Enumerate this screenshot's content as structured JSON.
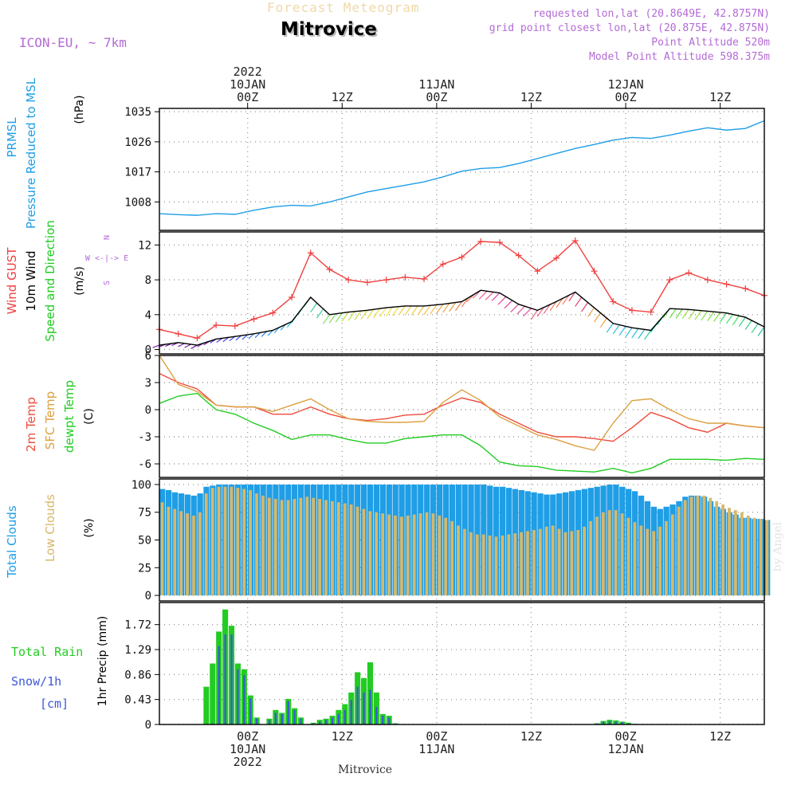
{
  "header": {
    "title": "Forecast Meteogram",
    "location": "Mitrovice",
    "model": "ICON-EU, ~ 7km",
    "info_lines": [
      "requested lon,lat (20.8649E, 42.8757N)",
      "grid point closest lon,lat (20.875E, 42.875N)",
      "Point Altitude 520m",
      "Model Point Altitude 598.375m"
    ],
    "signature": "by Angel",
    "footer": "Mitrovice"
  },
  "colors": {
    "pressure": "#1f9ee6",
    "gust": "#f04040",
    "wind": "#000000",
    "temp2m": "#ee4c3c",
    "sfc_temp": "#dca040",
    "dewpt": "#22cc22",
    "total_clouds": "#1f9ee6",
    "low_clouds": "#d8b868",
    "rain": "#22cc22",
    "snow": "#3d58d8",
    "label_purple": "#b36ad6"
  },
  "chart_data": [
    {
      "type": "line",
      "panel": "pressure",
      "ylabel_lines": [
        "PRMSL",
        "Pressure Reduced to MSL",
        "(hPa)"
      ],
      "yticks": [
        1008,
        1017,
        1026,
        1035
      ],
      "ylim": [
        999.5,
        1036
      ],
      "x_hours_from_start": [
        0,
        3,
        6,
        9,
        12,
        15,
        18,
        21,
        24,
        27,
        30,
        33,
        36,
        39,
        42,
        45,
        48,
        51,
        54,
        57,
        60,
        63,
        66,
        69,
        72,
        75,
        78,
        81,
        84,
        87,
        90,
        93,
        96
      ],
      "series": [
        {
          "name": "PRMSL",
          "values": [
            1004.5,
            1004.2,
            1004.0,
            1004.5,
            1004.3,
            1005.5,
            1006.5,
            1007.0,
            1006.8,
            1008.0,
            1009.5,
            1011.0,
            1012.0,
            1013.0,
            1014.0,
            1015.5,
            1017.2,
            1018.0,
            1018.3,
            1019.5,
            1021.0,
            1022.5,
            1024.0,
            1025.2,
            1026.5,
            1027.3,
            1027.0,
            1028.0,
            1029.2,
            1030.2,
            1029.5,
            1030.0,
            1032.3
          ]
        }
      ]
    },
    {
      "type": "line",
      "panel": "wind",
      "ylabel_lines": [
        "Wind GUST",
        "10m Wind",
        "Speed and Direction",
        "(m/s)"
      ],
      "compass": [
        "N",
        "W <-|-> E",
        "S"
      ],
      "yticks": [
        0,
        4,
        8,
        12
      ],
      "ylim": [
        -0.5,
        13.5
      ],
      "x_hours_from_start": [
        0,
        3,
        6,
        9,
        12,
        15,
        18,
        21,
        24,
        27,
        30,
        33,
        36,
        39,
        42,
        45,
        48,
        51,
        54,
        57,
        60,
        63,
        66,
        69,
        72,
        75,
        78,
        81,
        84,
        87,
        90,
        93,
        96
      ],
      "series": [
        {
          "name": "Wind GUST",
          "values": [
            2.3,
            1.8,
            1.3,
            2.8,
            2.7,
            3.5,
            4.2,
            6.0,
            11.1,
            9.2,
            8.0,
            7.7,
            8.0,
            8.3,
            8.1,
            9.8,
            10.6,
            12.4,
            12.3,
            10.8,
            9.0,
            10.5,
            12.5,
            9.0,
            5.5,
            4.5,
            4.3,
            8.0,
            8.8,
            8.0,
            7.5,
            7.0,
            6.2
          ]
        },
        {
          "name": "10m Wind",
          "values": [
            0.5,
            0.8,
            0.5,
            1.2,
            1.5,
            1.8,
            2.2,
            3.2,
            6.0,
            4.0,
            4.3,
            4.5,
            4.8,
            5.0,
            5.0,
            5.2,
            5.5,
            6.8,
            6.5,
            5.2,
            4.5,
            5.5,
            6.6,
            4.8,
            3.0,
            2.5,
            2.2,
            4.7,
            4.6,
            4.4,
            4.2,
            3.7,
            2.6
          ]
        }
      ],
      "arrow_colors": [
        "#7a1fa8",
        "#7a1fa8",
        "#7a1fa8",
        "#5a3fd8",
        "#3a5ae8",
        "#3a7ae8",
        "#2aa0e8",
        "#22c0e0",
        "#30d0a0",
        "#80e060",
        "#c0e040",
        "#e0e040",
        "#f0e040",
        "#f0d040",
        "#f0c040",
        "#f0a040",
        "#f08060",
        "#f06090",
        "#e040a0",
        "#e050a0",
        "#f06080",
        "#f08060",
        "#e04070",
        "#f0a040",
        "#30c0e0",
        "#22c0e0",
        "#22d0a0",
        "#60e040",
        "#a0e040",
        "#80e040",
        "#40e060",
        "#30d080",
        "#22c0a0"
      ]
    },
    {
      "type": "line",
      "panel": "temperature",
      "ylabel_lines": [
        "2m Temp",
        "SFC Temp",
        "dewpt Temp",
        "(C)"
      ],
      "yticks": [
        -6,
        -3,
        0,
        3,
        6
      ],
      "ylim": [
        -7.5,
        6
      ],
      "x_hours_from_start": [
        0,
        3,
        6,
        9,
        12,
        15,
        18,
        21,
        24,
        27,
        30,
        33,
        36,
        39,
        42,
        45,
        48,
        51,
        54,
        57,
        60,
        63,
        66,
        69,
        72,
        75,
        78,
        81,
        84,
        87,
        90,
        93,
        96
      ],
      "series": [
        {
          "name": "2m Temp",
          "values": [
            4.0,
            3.0,
            2.3,
            0.5,
            0.3,
            0.3,
            -0.5,
            -0.5,
            0.3,
            -0.5,
            -1.0,
            -1.2,
            -1.0,
            -0.6,
            -0.5,
            0.5,
            1.3,
            0.8,
            -0.5,
            -1.5,
            -2.5,
            -3.0,
            -3.0,
            -3.2,
            -3.5,
            -2.0,
            -0.3,
            -1.0,
            -2.0,
            -2.5,
            -1.5,
            -1.8,
            -2.0
          ]
        },
        {
          "name": "SFC Temp",
          "values": [
            6.0,
            2.8,
            2.0,
            0.5,
            0.3,
            0.3,
            -0.2,
            0.5,
            1.2,
            0.0,
            -1.0,
            -1.3,
            -1.4,
            -1.4,
            -1.3,
            0.8,
            2.2,
            1.0,
            -0.8,
            -1.8,
            -2.8,
            -3.3,
            -4.0,
            -4.5,
            -1.5,
            1.0,
            1.2,
            0.0,
            -1.0,
            -1.5,
            -1.5,
            -1.8,
            -2.0
          ]
        },
        {
          "name": "dewpt Temp",
          "values": [
            0.7,
            1.5,
            1.8,
            0.0,
            -0.5,
            -1.5,
            -2.3,
            -3.3,
            -2.8,
            -2.8,
            -3.3,
            -3.7,
            -3.7,
            -3.2,
            -3.0,
            -2.8,
            -2.8,
            -4.0,
            -5.8,
            -6.2,
            -6.3,
            -6.7,
            -6.8,
            -6.9,
            -6.5,
            -7.0,
            -6.5,
            -5.5,
            -5.5,
            -5.5,
            -5.6,
            -5.4,
            -5.5
          ]
        }
      ]
    },
    {
      "type": "bar",
      "panel": "clouds",
      "ylabel_lines": [
        "Total Clouds",
        "Low Clouds",
        "(%)"
      ],
      "yticks": [
        0,
        25,
        50,
        75,
        100
      ],
      "ylim": [
        -5,
        105
      ],
      "bar_step_hours": 1,
      "series": [
        {
          "name": "Total Clouds",
          "values": [
            96,
            95,
            93,
            92,
            91,
            90,
            92,
            98,
            99,
            100,
            100,
            100,
            100,
            100,
            100,
            100,
            100,
            100,
            100,
            100,
            100,
            100,
            100,
            100,
            100,
            100,
            100,
            100,
            100,
            100,
            100,
            100,
            100,
            100,
            100,
            100,
            100,
            100,
            100,
            100,
            100,
            100,
            100,
            100,
            100,
            100,
            100,
            100,
            100,
            100,
            100,
            100,
            99,
            98,
            98,
            97,
            96,
            95,
            94,
            93,
            92,
            91,
            91,
            92,
            93,
            94,
            95,
            96,
            97,
            98,
            99,
            100,
            100,
            98,
            96,
            94,
            90,
            85,
            80,
            78,
            80,
            82,
            85,
            89,
            90,
            90,
            89,
            85,
            80,
            78,
            75,
            73,
            70,
            70,
            69,
            69,
            68
          ]
        },
        {
          "name": "Low Clouds",
          "values": [
            84,
            80,
            78,
            76,
            74,
            72,
            75,
            92,
            97,
            98,
            98,
            98,
            97,
            96,
            95,
            92,
            90,
            88,
            87,
            86,
            86,
            87,
            88,
            89,
            88,
            87,
            86,
            85,
            84,
            83,
            82,
            80,
            78,
            76,
            75,
            74,
            73,
            72,
            71,
            72,
            73,
            74,
            75,
            74,
            72,
            70,
            67,
            63,
            60,
            57,
            55,
            55,
            54,
            53,
            54,
            55,
            56,
            57,
            58,
            59,
            60,
            62,
            63,
            60,
            57,
            58,
            59,
            62,
            67,
            71,
            75,
            77,
            77,
            74,
            70,
            66,
            63,
            60,
            58,
            62,
            67,
            73,
            80,
            86,
            89,
            90,
            90,
            88,
            85,
            82,
            79,
            77,
            75,
            72,
            70,
            69,
            68
          ]
        }
      ]
    },
    {
      "type": "bar",
      "panel": "precip",
      "ylabel_lines": [
        "Total Rain",
        "Snow/1h",
        "[cm]",
        "1hr Precip (mm)"
      ],
      "yticks": [
        0,
        0.43,
        0.86,
        1.29,
        1.72
      ],
      "ylim": [
        0,
        2.1
      ],
      "bar_step_hours": 1,
      "series": [
        {
          "name": "Total Rain",
          "values": [
            0,
            0,
            0,
            0,
            0,
            0,
            0,
            0.65,
            1.05,
            1.6,
            1.98,
            1.7,
            1.05,
            0.95,
            0.5,
            0.12,
            0,
            0.1,
            0.25,
            0.2,
            0.44,
            0.28,
            0.12,
            0,
            0.03,
            0.08,
            0.1,
            0.15,
            0.25,
            0.35,
            0.55,
            0.9,
            0.8,
            1.07,
            0.55,
            0.18,
            0.15,
            0.02,
            0,
            0,
            0,
            0,
            0,
            0,
            0,
            0,
            0,
            0,
            0,
            0,
            0,
            0,
            0,
            0,
            0,
            0,
            0,
            0,
            0,
            0,
            0,
            0,
            0,
            0,
            0,
            0,
            0,
            0,
            0,
            0.02,
            0.06,
            0.08,
            0.07,
            0.05,
            0.03,
            0.01,
            0,
            0,
            0,
            0,
            0,
            0,
            0,
            0,
            0,
            0,
            0,
            0,
            0,
            0,
            0,
            0,
            0,
            0,
            0,
            0,
            0
          ]
        },
        {
          "name": "Snow/1h",
          "values": [
            0,
            0,
            0,
            0,
            0,
            0,
            0,
            0,
            0.02,
            1.35,
            1.55,
            1.55,
            0.95,
            0.85,
            0.45,
            0.1,
            0,
            0.08,
            0.2,
            0.18,
            0.4,
            0.25,
            0.1,
            0,
            0.02,
            0.05,
            0.08,
            0.12,
            0.18,
            0.25,
            0.42,
            0.65,
            0.55,
            0.6,
            0.3,
            0.15,
            0.12,
            0.02,
            0,
            0,
            0,
            0,
            0,
            0,
            0,
            0,
            0,
            0,
            0,
            0,
            0,
            0,
            0,
            0,
            0,
            0,
            0,
            0,
            0,
            0,
            0,
            0,
            0,
            0,
            0,
            0,
            0,
            0,
            0,
            0.02,
            0.05,
            0.06,
            0.05,
            0.04,
            0.02,
            0.01,
            0,
            0,
            0,
            0,
            0,
            0,
            0,
            0,
            0,
            0,
            0,
            0,
            0,
            0,
            0,
            0,
            0,
            0,
            0,
            0,
            0
          ]
        }
      ]
    }
  ],
  "time_axis": {
    "top_ticks": [
      {
        "lines": [
          "2022",
          "10JAN",
          "00Z"
        ],
        "hour": 14
      },
      {
        "lines": [
          "12Z"
        ],
        "hour": 29
      },
      {
        "lines": [
          "11JAN",
          "00Z"
        ],
        "hour": 44
      },
      {
        "lines": [
          "12Z"
        ],
        "hour": 59
      },
      {
        "lines": [
          "12JAN",
          "00Z"
        ],
        "hour": 74
      },
      {
        "lines": [
          "12Z"
        ],
        "hour": 89
      }
    ],
    "bottom_ticks": [
      {
        "lines": [
          "00Z",
          "10JAN",
          "2022"
        ],
        "hour": 14
      },
      {
        "lines": [
          "12Z"
        ],
        "hour": 29
      },
      {
        "lines": [
          "00Z",
          "11JAN"
        ],
        "hour": 44
      },
      {
        "lines": [
          "12Z"
        ],
        "hour": 59
      },
      {
        "lines": [
          "00Z",
          "12JAN"
        ],
        "hour": 74
      },
      {
        "lines": [
          "12Z"
        ],
        "hour": 89
      }
    ]
  }
}
